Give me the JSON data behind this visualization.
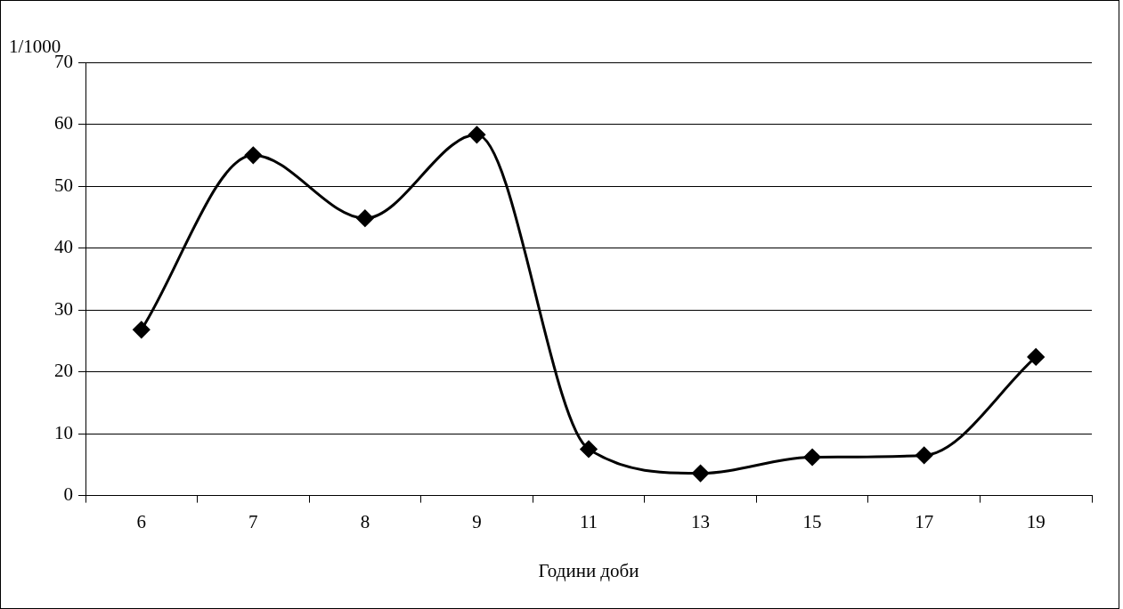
{
  "chart_data": {
    "type": "line",
    "xlabel": "Години доби",
    "ylabel": "1/1000",
    "categories": [
      "6",
      "7",
      "8",
      "9",
      "11",
      "13",
      "15",
      "17",
      "19"
    ],
    "series": [
      {
        "color": "#000000",
        "values": [
          26.8,
          55,
          44.8,
          58.3,
          7.5,
          3.6,
          6.2,
          6.5,
          22.4
        ]
      }
    ],
    "ylim": [
      0,
      70
    ],
    "yticks": [
      0,
      10,
      20,
      30,
      40,
      50,
      60,
      70
    ],
    "grid": "y",
    "legend": false,
    "marker": "diamond",
    "line_style": "solid"
  }
}
